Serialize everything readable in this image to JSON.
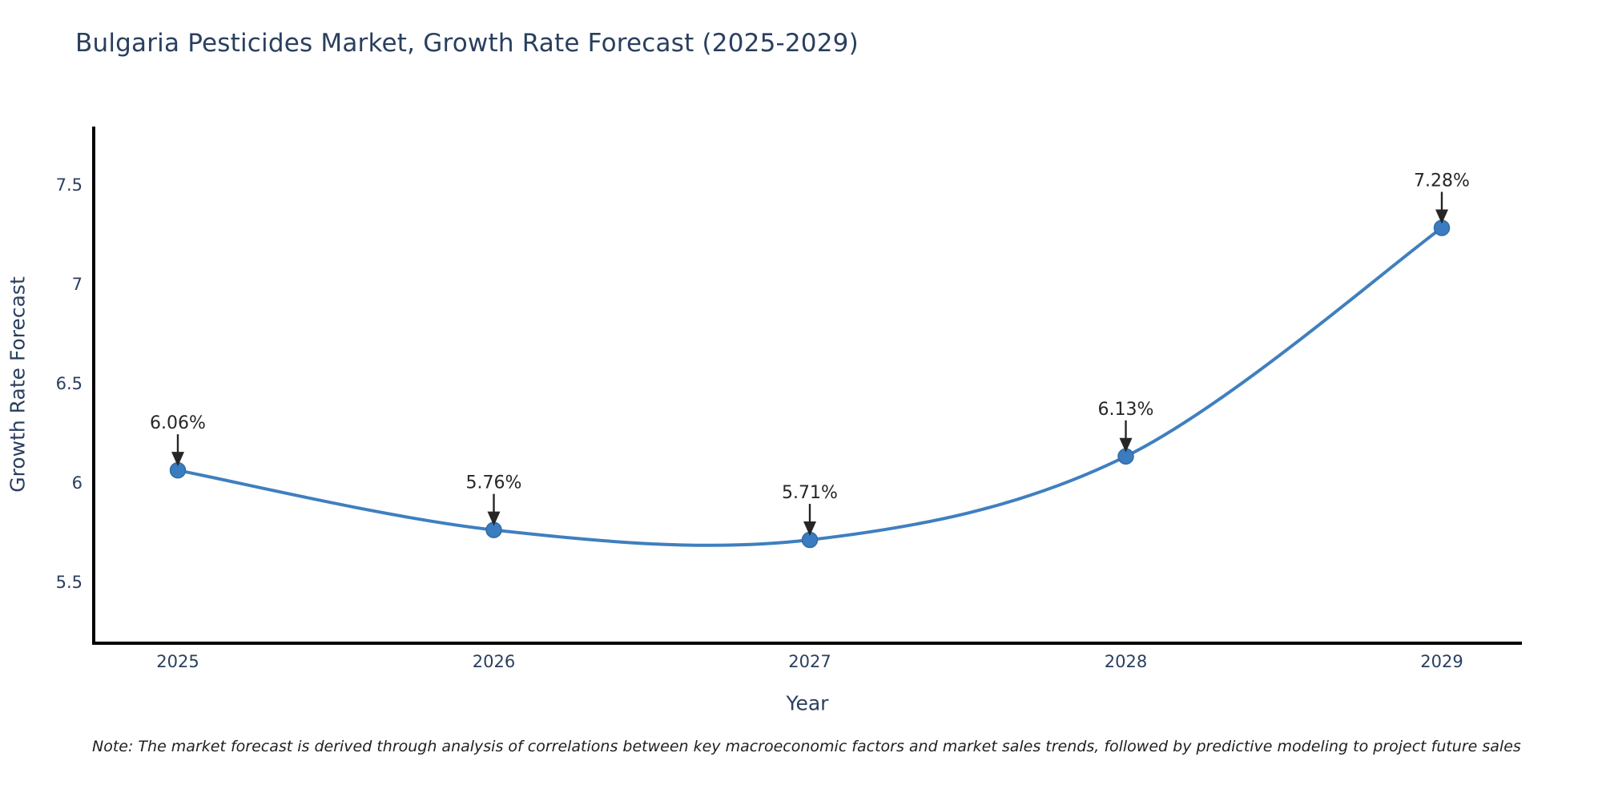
{
  "page": {
    "background": "#ffffff"
  },
  "chart_data": {
    "type": "line",
    "title": "Bulgaria Pesticides Market, Growth Rate Forecast (2025-2029)",
    "xlabel": "Year",
    "ylabel": "Growth Rate Forecast",
    "categories": [
      "2025",
      "2026",
      "2027",
      "2028",
      "2029"
    ],
    "series": [
      {
        "name": "Growth Rate Forecast",
        "values": [
          6.06,
          5.76,
          5.71,
          6.13,
          7.28
        ]
      }
    ],
    "point_labels": [
      "6.06%",
      "5.76%",
      "5.71%",
      "6.13%",
      "7.28%"
    ],
    "ytick_labels": [
      "5.5",
      "6",
      "6.5",
      "7",
      "7.5"
    ],
    "ytick_values": [
      5.5,
      6,
      6.5,
      7,
      7.5
    ],
    "ylim": [
      5.19,
      7.79
    ],
    "grid": false,
    "legend": "none",
    "line_shape": "spline",
    "annotation_style": "text-above-with-down-arrow",
    "colors": {
      "line": "#3f7fbf",
      "marker": "#3a7cbf",
      "marker_edge": "#2e6da4",
      "axis": "#000000",
      "axis_text": "#2a3f5f",
      "annotation": "#262626"
    }
  },
  "footnote": {
    "text": "Note: The market forecast is derived through analysis of correlations between key macroeconomic factors and market sales trends, followed by predictive modeling to project future sales"
  }
}
